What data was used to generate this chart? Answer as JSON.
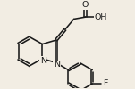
{
  "background_color": "#f2ede3",
  "line_color": "#1a1a1a",
  "lw": 1.15,
  "fs_label": 6.8,
  "figsize": [
    1.51,
    1.0
  ],
  "dpi": 100,
  "xlim": [
    0.0,
    7.5
  ],
  "ylim": [
    0.0,
    5.2
  ]
}
